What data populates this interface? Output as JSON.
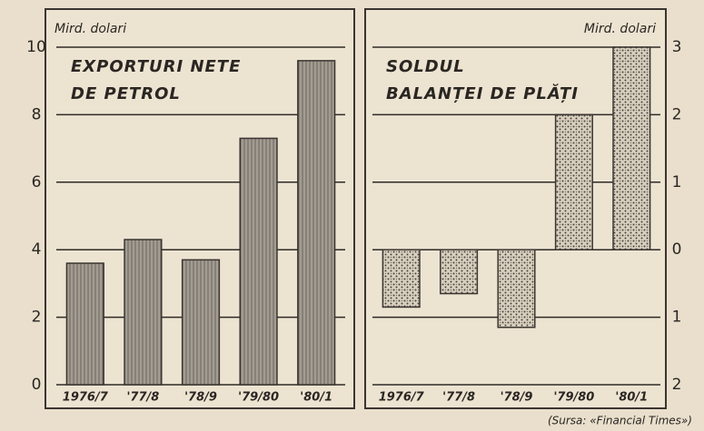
{
  "chart_data": [
    {
      "type": "bar",
      "y_label": "Mird. dolari",
      "title": [
        "EXPORTURI NETE",
        "DE PETROL"
      ],
      "categories": [
        "1976/7",
        "'77/8",
        "'78/9",
        "'79/80",
        "'80/1"
      ],
      "values": [
        3.6,
        4.3,
        3.7,
        7.3,
        9.6
      ],
      "color": "#9a948a",
      "pattern": "hatch",
      "ylim": [
        0,
        10
      ],
      "yticks": [
        0,
        2,
        4,
        6,
        8,
        10
      ],
      "y_axis_side": "left",
      "grid": true
    },
    {
      "type": "bar",
      "y_label": "Mird. dolari",
      "title": [
        "SOLDUL",
        "BALANȚEI DE PLĂȚI"
      ],
      "categories": [
        "1976/7",
        "'77/8",
        "'78/9",
        "'79/80",
        "'80/1"
      ],
      "values": [
        -0.85,
        -0.65,
        -1.15,
        2.0,
        3.0
      ],
      "color": "#a8a196",
      "pattern": "stipple",
      "ylim": [
        -2,
        3
      ],
      "yticks": [
        {
          "value": -2,
          "label": "2"
        },
        {
          "value": -1,
          "label": "1"
        },
        0,
        1,
        2,
        3
      ],
      "y_axis_side": "right",
      "grid": true
    }
  ],
  "source": "(Sursa: «Financial Times»)"
}
